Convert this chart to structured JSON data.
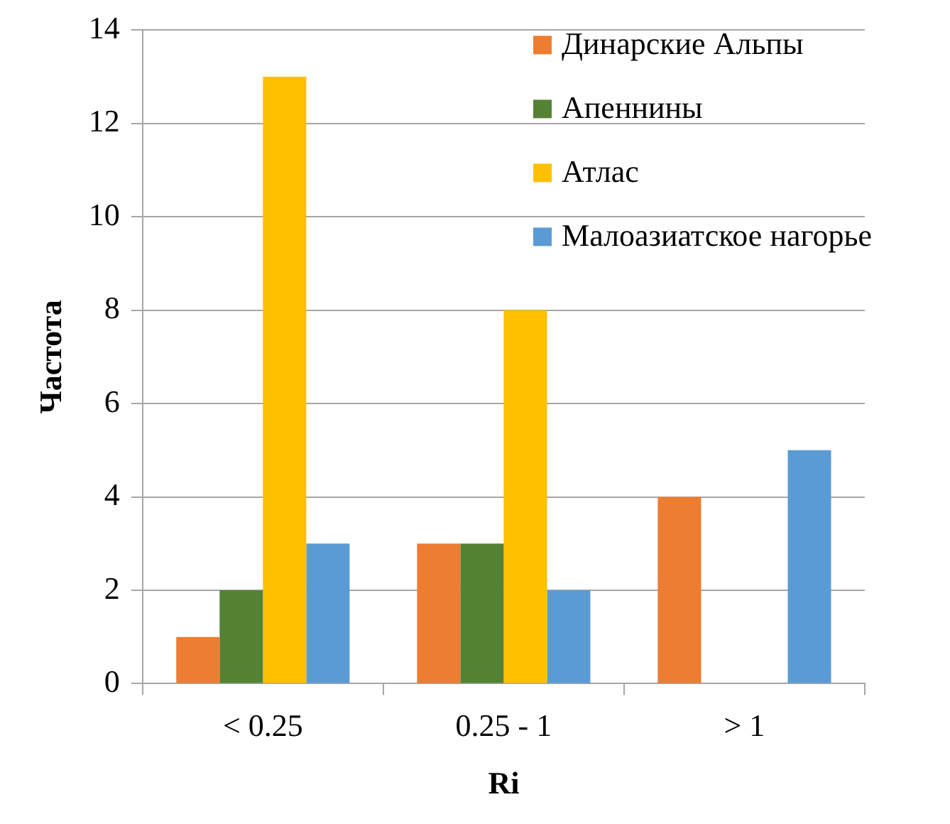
{
  "chart_data": {
    "type": "bar",
    "xlabel": "Ri",
    "ylabel": "Частота",
    "categories": [
      "< 0.25",
      "0.25 - 1",
      "> 1"
    ],
    "series": [
      {
        "name": "Динарские Альпы",
        "color": "#ed7d31",
        "values": [
          1,
          3,
          4
        ]
      },
      {
        "name": "Апеннины",
        "color": "#548235",
        "values": [
          2,
          3,
          0
        ]
      },
      {
        "name": "Атлас",
        "color": "#ffc000",
        "values": [
          13,
          8,
          0
        ]
      },
      {
        "name": "Малоазиатское нагорье",
        "color": "#5b9bd5",
        "values": [
          3,
          2,
          5
        ]
      }
    ],
    "ylim": [
      0,
      14
    ],
    "yticks": [
      0,
      2,
      4,
      6,
      8,
      10,
      12,
      14
    ],
    "grid": "y",
    "legend": "top right"
  }
}
